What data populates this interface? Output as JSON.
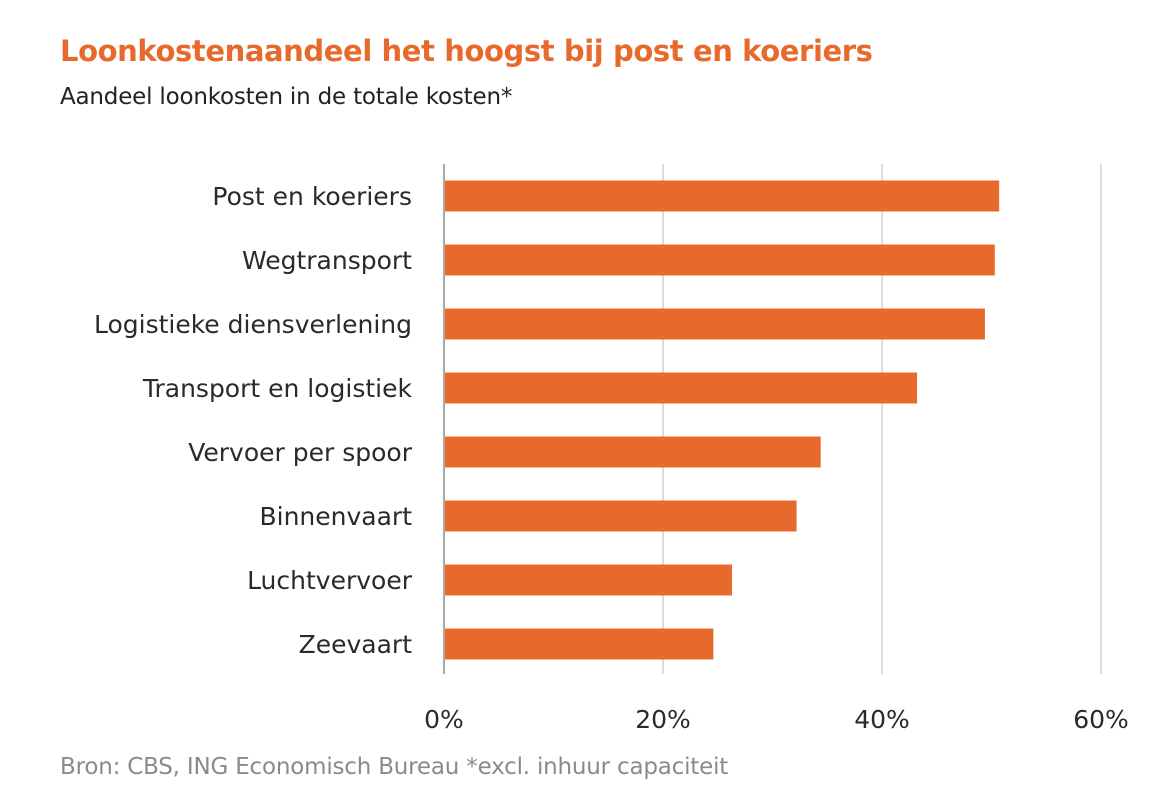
{
  "chart_data": {
    "type": "bar",
    "orientation": "horizontal",
    "title": "Loonkostenaandeel het hoogst bij post en koeriers",
    "subtitle": "Aandeel loonkosten in de totale kosten*",
    "source": "Bron: CBS, ING Economisch Bureau *excl. inhuur capaciteit",
    "categories": [
      "Post en koeriers",
      "Wegtransport",
      "Logistieke diensverlening",
      "Transport en logistiek",
      "Vervoer per spoor",
      "Binnenvaart",
      "Luchtvervoer",
      "Zeevaart"
    ],
    "values": [
      50.7,
      50.3,
      49.4,
      43.2,
      34.4,
      32.2,
      26.3,
      24.6
    ],
    "xlim": [
      0,
      60
    ],
    "xticks": [
      0,
      20,
      40,
      60
    ],
    "xtick_labels": [
      "0%",
      "20%",
      "40%",
      "60%"
    ],
    "grid": "vertical",
    "bar_color": "#e8692c",
    "grid_color": "#d0d0d0",
    "axis_color": "#aaaaaa"
  }
}
